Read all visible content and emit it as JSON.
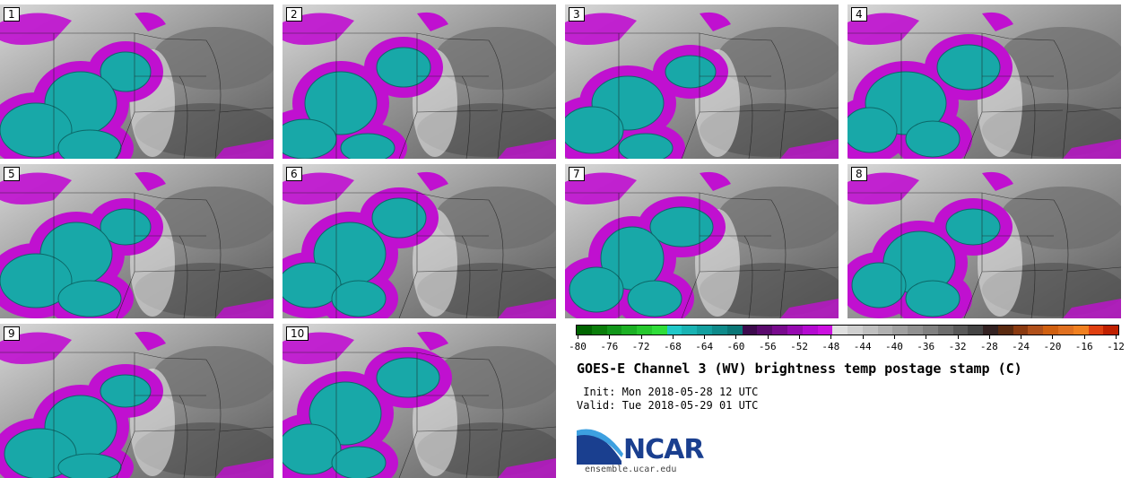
{
  "panels": [
    {
      "label": "1"
    },
    {
      "label": "2"
    },
    {
      "label": "3"
    },
    {
      "label": "4"
    },
    {
      "label": "5"
    },
    {
      "label": "6"
    },
    {
      "label": "7"
    },
    {
      "label": "8"
    },
    {
      "label": "9"
    },
    {
      "label": "10"
    }
  ],
  "colorbar": {
    "ticks": [
      "-80",
      "-76",
      "-72",
      "-68",
      "-64",
      "-60",
      "-56",
      "-52",
      "-48",
      "-44",
      "-40",
      "-36",
      "-32",
      "-28",
      "-24",
      "-20",
      "-16",
      "-12"
    ],
    "colors": [
      "#006400",
      "#0a7d0a",
      "#12961a",
      "#1bb024",
      "#26c82e",
      "#2fdd3a",
      "#20c8c8",
      "#19b3b3",
      "#139f9f",
      "#0e8a8a",
      "#0a7676",
      "#3d0a4d",
      "#5a0a6d",
      "#780a8d",
      "#960ab0",
      "#b40ad0",
      "#cc10e0",
      "#e0e0e0",
      "#d0d0d0",
      "#c0c0c0",
      "#b0b0b0",
      "#a0a0a0",
      "#909090",
      "#808080",
      "#6c6c6c",
      "#585858",
      "#444444",
      "#332222",
      "#5a2a10",
      "#8a3a10",
      "#b0501a",
      "#d06010",
      "#e07020",
      "#f08020",
      "#e04010",
      "#c02000"
    ]
  },
  "title": "GOES-E Channel 3 (WV) brightness temp postage stamp (C)",
  "init_text": " Init: Mon 2018-05-28 12 UTC",
  "valid_text": "Valid: Tue 2018-05-29 01 UTC",
  "logo": {
    "word": "NCAR",
    "site": "ensemble.ucar.edu"
  }
}
